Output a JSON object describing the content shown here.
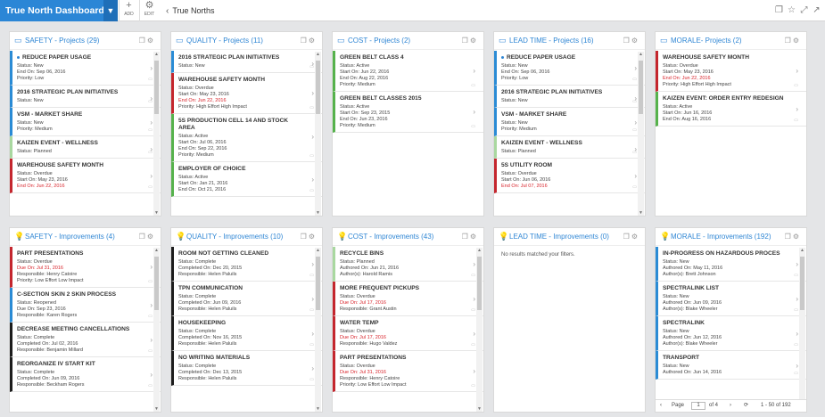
{
  "topbar": {
    "dashboard_title": "True North Dashboard",
    "add_label": "ADD",
    "edit_label": "EDIT",
    "breadcrumb": "True Norths"
  },
  "colors": {
    "accent": "#2b86d6",
    "overdue": "#d8232a"
  },
  "panels": [
    {
      "icon": "folder-icon",
      "title": "SAFETY - Projects (29)",
      "cards": [
        {
          "accent": "b-blue",
          "dot": true,
          "title": "REDUCE PAPER USAGE",
          "lines": [
            {
              "t": "Status: New"
            },
            {
              "t": "End On: Sep 06, 2016"
            },
            {
              "t": "Priority: Low"
            }
          ]
        },
        {
          "accent": "b-blue",
          "title": "2016 STRATEGIC PLAN INITIATIVES",
          "lines": [
            {
              "t": "Status: New"
            }
          ]
        },
        {
          "accent": "b-blue",
          "title": "VSM - MARKET SHARE",
          "lines": [
            {
              "t": "Status: New"
            },
            {
              "t": "Priority: Medium"
            }
          ]
        },
        {
          "accent": "b-lgreen",
          "title": "KAIZEN EVENT - WELLNESS",
          "lines": [
            {
              "t": "Status: Planned"
            }
          ]
        },
        {
          "accent": "b-red",
          "title": "WAREHOUSE SAFETY MONTH",
          "lines": [
            {
              "t": "Status: Overdue"
            },
            {
              "t": "Start On: May 23, 2016"
            },
            {
              "t": "End On: Jun 22, 2016",
              "red": true
            }
          ]
        }
      ]
    },
    {
      "icon": "folder-icon",
      "title": "QUALITY - Projects (11)",
      "cards": [
        {
          "accent": "b-blue",
          "title": "2016 STRATEGIC PLAN INITIATIVES",
          "lines": [
            {
              "t": "Status: New"
            }
          ]
        },
        {
          "accent": "b-red",
          "title": "WAREHOUSE SAFETY MONTH",
          "lines": [
            {
              "t": "Status: Overdue"
            },
            {
              "t": "Start On: May 23, 2016"
            },
            {
              "t": "End On: Jun 22, 2016",
              "red": true
            },
            {
              "t": "Priority: High Effort High Impact"
            }
          ]
        },
        {
          "accent": "b-green",
          "title": "5S PRODUCTION CELL 14 AND STOCK AREA",
          "lines": [
            {
              "t": "Status: Active"
            },
            {
              "t": "Start On: Jul 06, 2016"
            },
            {
              "t": "End On: Sep 22, 2016"
            },
            {
              "t": "Priority: Medium"
            }
          ]
        },
        {
          "accent": "b-green",
          "title": "EMPLOYER OF CHOICE",
          "lines": [
            {
              "t": "Status: Active"
            },
            {
              "t": "Start On: Jan 21, 2016"
            },
            {
              "t": "End On: Oct 21, 2016"
            }
          ]
        }
      ]
    },
    {
      "icon": "folder-icon",
      "title": "COST - Projects (2)",
      "cards": [
        {
          "accent": "b-green",
          "title": "GREEN BELT CLASS 4",
          "lines": [
            {
              "t": "Status: Active"
            },
            {
              "t": "Start On: Jun 22, 2016"
            },
            {
              "t": "End On: Aug 22, 2016"
            },
            {
              "t": "Priority: Medium"
            }
          ]
        },
        {
          "accent": "b-green",
          "title": "GREEN BELT CLASSES 2015",
          "lines": [
            {
              "t": "Status: Active"
            },
            {
              "t": "Start On: Sep 23, 2015"
            },
            {
              "t": "End On: Jun 23, 2016"
            },
            {
              "t": "Priority: Medium"
            }
          ]
        }
      ]
    },
    {
      "icon": "folder-icon",
      "title": "LEAD TIME - Projects (16)",
      "cards": [
        {
          "accent": "b-blue",
          "dot": true,
          "title": "REDUCE PAPER USAGE",
          "lines": [
            {
              "t": "Status: New"
            },
            {
              "t": "End On: Sep 06, 2016"
            },
            {
              "t": "Priority: Low"
            }
          ]
        },
        {
          "accent": "b-blue",
          "title": "2016 STRATEGIC PLAN INITIATIVES",
          "lines": [
            {
              "t": "Status: New"
            }
          ]
        },
        {
          "accent": "b-blue",
          "title": "VSM - MARKET SHARE",
          "lines": [
            {
              "t": "Status: New"
            },
            {
              "t": "Priority: Medium"
            }
          ]
        },
        {
          "accent": "b-lgreen",
          "title": "KAIZEN EVENT - WELLNESS",
          "lines": [
            {
              "t": "Status: Planned"
            }
          ]
        },
        {
          "accent": "b-red",
          "title": "5S UTILITY ROOM",
          "lines": [
            {
              "t": "Status: Overdue"
            },
            {
              "t": "Start On: Jun 06, 2016"
            },
            {
              "t": "End On: Jul 07, 2016",
              "red": true
            }
          ]
        }
      ]
    },
    {
      "icon": "folder-icon",
      "title": "MORALE- Projects (2)",
      "cards": [
        {
          "accent": "b-red",
          "title": "WAREHOUSE SAFETY MONTH",
          "lines": [
            {
              "t": "Status: Overdue"
            },
            {
              "t": "Start On: May 23, 2016"
            },
            {
              "t": "End On: Jun 22, 2016",
              "red": true
            },
            {
              "t": "Priority: High Effort High Impact"
            }
          ]
        },
        {
          "accent": "b-green",
          "title": "KAIZEN EVENT: ORDER ENTRY REDESIGN",
          "lines": [
            {
              "t": "Status: Active"
            },
            {
              "t": "Start On: Jun 16, 2016"
            },
            {
              "t": "End On: Aug 16, 2016"
            }
          ]
        }
      ]
    },
    {
      "icon": "lightbulb-icon",
      "title": "SAFETY - Improvements (4)",
      "cards": [
        {
          "accent": "b-red",
          "title": "PART PRESENTATIONS",
          "lines": [
            {
              "t": "Status: Overdue"
            },
            {
              "t": "Due On: Jul 31, 2016",
              "red": true
            },
            {
              "t": "Responsible: Henry Catoire"
            },
            {
              "t": "Priority: Low Effort Low Impact"
            }
          ]
        },
        {
          "accent": "b-blue",
          "title": "C-SECTION SKIN 2 SKIN PROCESS",
          "lines": [
            {
              "t": "Status: Reopened"
            },
            {
              "t": "Due On: Sep 23, 2016"
            },
            {
              "t": "Responsible: Karen Rogers"
            }
          ]
        },
        {
          "accent": "b-black",
          "title": "DECREASE MEETING CANCELLATIONS",
          "lines": [
            {
              "t": "Status: Complete"
            },
            {
              "t": "Completed On: Jul 02, 2016"
            },
            {
              "t": "Responsible: Benjamin Millard"
            }
          ]
        },
        {
          "accent": "b-black",
          "title": "REORGANIZE IV START KIT",
          "lines": [
            {
              "t": "Status: Complete"
            },
            {
              "t": "Completed On: Jun 09, 2016"
            },
            {
              "t": "Responsible: Beckham Rogers"
            }
          ]
        }
      ]
    },
    {
      "icon": "lightbulb-icon",
      "title": "QUALITY - Improvements (10)",
      "cards": [
        {
          "accent": "b-black",
          "title": "ROOM NOT GETTING CLEANED",
          "lines": [
            {
              "t": "Status: Complete"
            },
            {
              "t": "Completed On: Dec 20, 2015"
            },
            {
              "t": "Responsible: Helen Paluils"
            }
          ]
        },
        {
          "accent": "b-black",
          "title": "TPN COMMUNICATION",
          "lines": [
            {
              "t": "Status: Complete"
            },
            {
              "t": "Completed On: Jun 09, 2016"
            },
            {
              "t": "Responsible: Helen Paluils"
            }
          ]
        },
        {
          "accent": "b-black",
          "title": "HOUSEKEEPING",
          "lines": [
            {
              "t": "Status: Complete"
            },
            {
              "t": "Completed On: Nov 16, 2015"
            },
            {
              "t": "Responsible: Helen Paluils"
            }
          ]
        },
        {
          "accent": "b-black",
          "title": "NO WRITING MATERIALS",
          "lines": [
            {
              "t": "Status: Complete"
            },
            {
              "t": "Completed On: Dec 13, 2015"
            },
            {
              "t": "Responsible: Helen Paluils"
            }
          ]
        }
      ]
    },
    {
      "icon": "lightbulb-icon",
      "title": "COST - Improvements (43)",
      "cards": [
        {
          "accent": "b-lgreen",
          "title": "RECYCLE BINS",
          "lines": [
            {
              "t": "Status: Planned"
            },
            {
              "t": "Authored On: Jun 21, 2016"
            },
            {
              "t": "Author(s): Harold Ramis"
            }
          ]
        },
        {
          "accent": "b-red",
          "title": "MORE FREQUENT PICKUPS",
          "lines": [
            {
              "t": "Status: Overdue"
            },
            {
              "t": "Due On: Jul 17, 2016",
              "red": true
            },
            {
              "t": "Responsible: Grant Austin"
            }
          ]
        },
        {
          "accent": "b-red",
          "title": "WATER TEMP",
          "lines": [
            {
              "t": "Status: Overdue"
            },
            {
              "t": "Due On: Jul 17, 2016",
              "red": true
            },
            {
              "t": "Responsible: Hugo Valdez"
            }
          ]
        },
        {
          "accent": "b-red",
          "title": "PART PRESENTATIONS",
          "lines": [
            {
              "t": "Status: Overdue"
            },
            {
              "t": "Due On: Jul 31, 2016",
              "red": true
            },
            {
              "t": "Responsible: Henry Catoire"
            },
            {
              "t": "Priority: Low Effort Low Impact"
            }
          ]
        }
      ]
    },
    {
      "icon": "lightbulb-icon",
      "title": "LEAD TIME - Improvements (0)",
      "empty": "No results matched your filters.",
      "cards": []
    },
    {
      "icon": "lightbulb-icon",
      "title": "MORALE - Improvements (192)",
      "cards": [
        {
          "accent": "b-blue",
          "title": "IN-PROGRESS ON HAZARDOUS PROCES",
          "lines": [
            {
              "t": "Status: New"
            },
            {
              "t": "Authored On: May 11, 2016"
            },
            {
              "t": "Author(s): Brett Johnson"
            }
          ]
        },
        {
          "accent": "b-blue",
          "title": "SPECTRALINK LIST",
          "lines": [
            {
              "t": "Status: New"
            },
            {
              "t": "Authored On: Jun 09, 2016"
            },
            {
              "t": "Author(s): Blake Wheeler"
            }
          ]
        },
        {
          "accent": "b-blue",
          "title": "SPECTRALINK",
          "lines": [
            {
              "t": "Status: New"
            },
            {
              "t": "Authored On: Jun 12, 2016"
            },
            {
              "t": "Author(s): Blake Wheeler"
            }
          ]
        },
        {
          "accent": "b-blue",
          "title": "TRANSPORT",
          "lines": [
            {
              "t": "Status: New"
            },
            {
              "t": "Authored On: Jun 14, 2016"
            }
          ]
        }
      ],
      "pager": {
        "page_label": "Page",
        "page_value": "1",
        "of_label": "of 4",
        "range": "1 - 50 of 192"
      }
    }
  ]
}
